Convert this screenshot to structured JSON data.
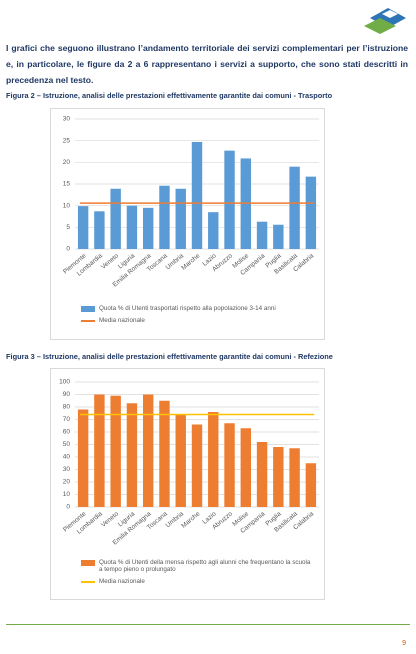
{
  "document": {
    "paragraph": "I grafici che seguono illustrano l’andamento territoriale dei servizi complementari per l’istruzione e, in particolare, le figure da 2 a 6 rappresentano i servizi a supporto, che sono stati descritti in precedenza nel testo.",
    "page_number": "9"
  },
  "chart_data": [
    {
      "type": "bar",
      "caption": "Figura 2 – Istruzione, analisi delle prestazioni effettivamente garantite dai comuni - Trasporto",
      "categories": [
        "Piemonte",
        "Lombardia",
        "Veneto",
        "Liguria",
        "Emilia Romagna",
        "Toscana",
        "Umbria",
        "Marche",
        "Lazio",
        "Abruzzo",
        "Molise",
        "Campania",
        "Puglia",
        "Basilicata",
        "Calabria"
      ],
      "series": [
        {
          "name": "Quota % di Utenti trasportati rispetto alla popolazione 3-14 anni",
          "color": "#5b9bd5",
          "values": [
            9.9,
            8.7,
            13.9,
            10.0,
            9.5,
            14.6,
            13.9,
            24.7,
            8.5,
            22.7,
            20.9,
            6.3,
            5.6,
            19.0,
            16.7
          ]
        }
      ],
      "reference_line": {
        "name": "Media nazionale",
        "color": "#ed7d31",
        "value": 10.6
      },
      "ylim": [
        0,
        30
      ],
      "yticks": [
        0,
        5,
        10,
        15,
        20,
        25,
        30
      ],
      "grid": true
    },
    {
      "type": "bar",
      "caption": "Figura 3 – Istruzione, analisi delle prestazioni effettivamente garantite dai comuni - Refezione",
      "categories": [
        "Piemonte",
        "Lombardia",
        "Veneto",
        "Liguria",
        "Emilia Romagna",
        "Toscana",
        "Umbria",
        "Marche",
        "Lazio",
        "Abruzzo",
        "Molise",
        "Campania",
        "Puglia",
        "Basilicata",
        "Calabria"
      ],
      "series": [
        {
          "name": "Quota % di Utenti della mensa rispetto agli alunni che frequentano la scuola a tempo pieno o prolungato",
          "color": "#ed7d31",
          "values": [
            78,
            90,
            89,
            83,
            90,
            85,
            74,
            66,
            76,
            67,
            63,
            52,
            48,
            47,
            35
          ]
        }
      ],
      "reference_line": {
        "name": "Media nazionale",
        "color": "#ffc000",
        "value": 74
      },
      "ylim": [
        0,
        100
      ],
      "yticks": [
        0,
        10,
        20,
        30,
        40,
        50,
        60,
        70,
        80,
        90,
        100
      ],
      "grid": true
    }
  ]
}
